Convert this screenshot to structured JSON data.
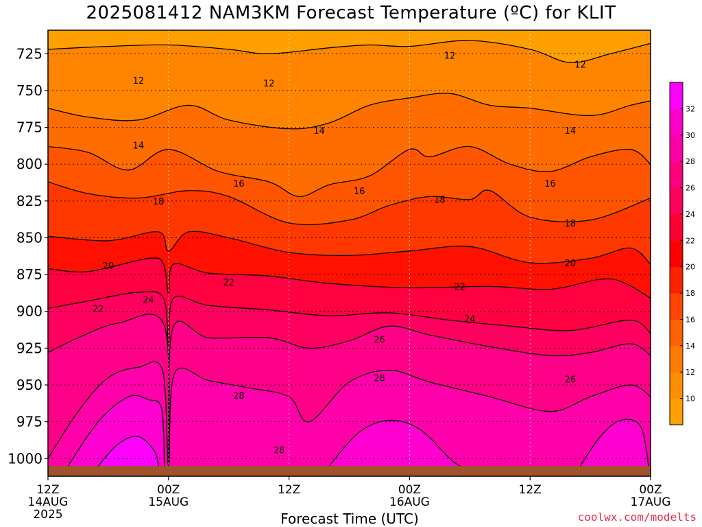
{
  "chart_data": {
    "type": "contour",
    "title": "2025081412 NAM3KM Forecast Temperature (ºC) for KLIT",
    "xlabel": "Forecast Time (UTC)",
    "ylabel": "",
    "x_hours_range": [
      0,
      60
    ],
    "x_ticks": [
      {
        "hour": 0,
        "label": "12Z",
        "sub": "14AUG",
        "sub2": "2025"
      },
      {
        "hour": 12,
        "label": "00Z",
        "sub": "15AUG",
        "sub2": ""
      },
      {
        "hour": 24,
        "label": "12Z",
        "sub": "",
        "sub2": ""
      },
      {
        "hour": 36,
        "label": "00Z",
        "sub": "16AUG",
        "sub2": ""
      },
      {
        "hour": 48,
        "label": "12Z",
        "sub": "",
        "sub2": ""
      },
      {
        "hour": 60,
        "label": "00Z",
        "sub": "17AUG",
        "sub2": ""
      }
    ],
    "y_pressure_range": [
      1012,
      709
    ],
    "y_ticks": [
      725,
      750,
      775,
      800,
      825,
      850,
      875,
      900,
      925,
      950,
      975,
      1000
    ],
    "grid": true,
    "colorbar": {
      "position": "right",
      "labels": [
        10,
        12,
        14,
        16,
        18,
        20,
        22,
        24,
        26,
        28,
        30,
        32
      ],
      "colors": [
        "#ffa000",
        "#ff8f00",
        "#ff7a00",
        "#ff6000",
        "#ff4500",
        "#ff2200",
        "#ff0000",
        "#ff0035",
        "#ff005a",
        "#ff0080",
        "#ff00a8",
        "#ff00cc",
        "#ff00ff"
      ]
    },
    "isotherms": [
      {
        "temp": 12,
        "points": [
          [
            0,
            722
          ],
          [
            6,
            720
          ],
          [
            12,
            719
          ],
          [
            18,
            722
          ],
          [
            22,
            725
          ],
          [
            28,
            721
          ],
          [
            32,
            719
          ],
          [
            36,
            720
          ],
          [
            42,
            716
          ],
          [
            48,
            722
          ],
          [
            52,
            731
          ],
          [
            56,
            725
          ],
          [
            60,
            718
          ]
        ],
        "labels": [
          {
            "hour": 9,
            "p": 743
          },
          {
            "hour": 22,
            "p": 745
          },
          {
            "hour": 40,
            "p": 726
          },
          {
            "hour": 53,
            "p": 732
          }
        ]
      },
      {
        "temp": 14,
        "points": [
          [
            0,
            762
          ],
          [
            4,
            768
          ],
          [
            9,
            770
          ],
          [
            14,
            760
          ],
          [
            18,
            770
          ],
          [
            24,
            776
          ],
          [
            28,
            772
          ],
          [
            32,
            760
          ],
          [
            36,
            755
          ],
          [
            40,
            752
          ],
          [
            44,
            760
          ],
          [
            48,
            762
          ],
          [
            54,
            767
          ],
          [
            58,
            760
          ],
          [
            60,
            757
          ]
        ],
        "labels": [
          {
            "hour": 9,
            "p": 787
          },
          {
            "hour": 27,
            "p": 777
          },
          {
            "hour": 52,
            "p": 777
          }
        ]
      },
      {
        "temp": 16,
        "points": [
          [
            0,
            788
          ],
          [
            4,
            792
          ],
          [
            8,
            804
          ],
          [
            12,
            790
          ],
          [
            17,
            805
          ],
          [
            22,
            812
          ],
          [
            25,
            822
          ],
          [
            28,
            814
          ],
          [
            32,
            808
          ],
          [
            36,
            790
          ],
          [
            38,
            795
          ],
          [
            42,
            788
          ],
          [
            46,
            800
          ],
          [
            50,
            805
          ],
          [
            54,
            795
          ],
          [
            58,
            790
          ],
          [
            60,
            800
          ]
        ],
        "labels": [
          {
            "hour": 19,
            "p": 813
          },
          {
            "hour": 31,
            "p": 818
          },
          {
            "hour": 50,
            "p": 813
          }
        ]
      },
      {
        "temp": 18,
        "points": [
          [
            0,
            812
          ],
          [
            4,
            820
          ],
          [
            9,
            823
          ],
          [
            14,
            818
          ],
          [
            18,
            822
          ],
          [
            24,
            840
          ],
          [
            30,
            838
          ],
          [
            34,
            828
          ],
          [
            38,
            822
          ],
          [
            42,
            824
          ],
          [
            44,
            818
          ],
          [
            48,
            836
          ],
          [
            54,
            838
          ],
          [
            60,
            823
          ]
        ],
        "labels": [
          {
            "hour": 11,
            "p": 825
          },
          {
            "hour": 39,
            "p": 824
          },
          {
            "hour": 52,
            "p": 840
          }
        ]
      },
      {
        "temp": 20,
        "points": [
          [
            0,
            849
          ],
          [
            6,
            852
          ],
          [
            11,
            846
          ],
          [
            12,
            859
          ],
          [
            14,
            846
          ],
          [
            18,
            850
          ],
          [
            24,
            860
          ],
          [
            30,
            862
          ],
          [
            36,
            859
          ],
          [
            42,
            856
          ],
          [
            48,
            867
          ],
          [
            54,
            864
          ],
          [
            58,
            857
          ],
          [
            60,
            868
          ]
        ],
        "labels": [
          {
            "hour": 6,
            "p": 869
          },
          {
            "hour": 52,
            "p": 867
          }
        ]
      },
      {
        "temp": 22,
        "points": [
          [
            0,
            871
          ],
          [
            4,
            873
          ],
          [
            10,
            864
          ],
          [
            11.5,
            868
          ],
          [
            12,
            888
          ],
          [
            12.5,
            868
          ],
          [
            16,
            874
          ],
          [
            22,
            876
          ],
          [
            28,
            881
          ],
          [
            36,
            884
          ],
          [
            44,
            883
          ],
          [
            50,
            885
          ],
          [
            56,
            878
          ],
          [
            60,
            891
          ]
        ],
        "labels": [
          {
            "hour": 5,
            "p": 898
          },
          {
            "hour": 18,
            "p": 880
          },
          {
            "hour": 41,
            "p": 883
          }
        ]
      },
      {
        "temp": 24,
        "points": [
          [
            0,
            898
          ],
          [
            4,
            893
          ],
          [
            9,
            887
          ],
          [
            11.5,
            891
          ],
          [
            12,
            923
          ],
          [
            12.5,
            891
          ],
          [
            16,
            896
          ],
          [
            22,
            899
          ],
          [
            28,
            903
          ],
          [
            34,
            901
          ],
          [
            40,
            906
          ],
          [
            46,
            910
          ],
          [
            52,
            913
          ],
          [
            58,
            906
          ],
          [
            60,
            915
          ]
        ],
        "labels": [
          {
            "hour": 10,
            "p": 892
          },
          {
            "hour": 42,
            "p": 905
          }
        ]
      },
      {
        "temp": 26,
        "points": [
          [
            0,
            928
          ],
          [
            3,
            918
          ],
          [
            7,
            908
          ],
          [
            11.6,
            910
          ],
          [
            12,
            1005
          ],
          [
            12.4,
            912
          ],
          [
            16,
            918
          ],
          [
            22,
            918
          ],
          [
            26,
            925
          ],
          [
            30,
            920
          ],
          [
            34,
            910
          ],
          [
            38,
            916
          ],
          [
            44,
            924
          ],
          [
            50,
            930
          ],
          [
            54,
            928
          ],
          [
            58,
            922
          ],
          [
            60,
            930
          ]
        ],
        "labels": [
          {
            "hour": 33,
            "p": 919
          },
          {
            "hour": 52,
            "p": 946
          }
        ]
      },
      {
        "temp": 28,
        "points": [
          [
            0,
            1000
          ],
          [
            3,
            968
          ],
          [
            6,
            945
          ],
          [
            9,
            938
          ],
          [
            11.4,
            940
          ],
          [
            12,
            1005
          ],
          [
            12.6,
            942
          ],
          [
            16,
            947
          ],
          [
            20,
            952
          ],
          [
            24,
            958
          ],
          [
            26,
            975
          ],
          [
            30,
            948
          ],
          [
            34,
            940
          ],
          [
            38,
            948
          ],
          [
            44,
            958
          ],
          [
            50,
            968
          ],
          [
            54,
            958
          ],
          [
            58,
            950
          ],
          [
            60,
            958
          ]
        ],
        "labels": [
          {
            "hour": 19,
            "p": 957
          },
          {
            "hour": 33,
            "p": 945
          },
          {
            "hour": 23,
            "p": 994
          }
        ]
      },
      {
        "temp": 30,
        "points": [
          [
            2,
            1005
          ],
          [
            5,
            975
          ],
          [
            8,
            958
          ],
          [
            10,
            960
          ],
          [
            11.3,
            966
          ],
          [
            11.6,
            1005
          ]
        ],
        "labels": []
      },
      {
        "temp": 30,
        "points": [
          [
            28,
            1005
          ],
          [
            31,
            982
          ],
          [
            34,
            974
          ],
          [
            37,
            980
          ],
          [
            40,
            1000
          ],
          [
            41,
            1005
          ]
        ],
        "labels": []
      },
      {
        "temp": 30,
        "points": [
          [
            53,
            1005
          ],
          [
            55,
            985
          ],
          [
            57,
            974
          ],
          [
            59,
            978
          ],
          [
            59.8,
            1005
          ]
        ],
        "labels": []
      },
      {
        "temp": 32,
        "points": [
          [
            5,
            1005
          ],
          [
            7,
            990
          ],
          [
            9,
            985
          ],
          [
            10.6,
            995
          ],
          [
            11,
            1005
          ]
        ],
        "labels": []
      }
    ],
    "fills": [
      {
        "level": 12,
        "color": "#ff8500"
      },
      {
        "level": 14,
        "color": "#ff6c00"
      },
      {
        "level": 16,
        "color": "#ff5500"
      },
      {
        "level": 18,
        "color": "#ff3800"
      },
      {
        "level": 20,
        "color": "#ff1000"
      },
      {
        "level": 22,
        "color": "#ff0040"
      },
      {
        "level": 24,
        "color": "#ff0060"
      },
      {
        "level": 26,
        "color": "#ff0088"
      },
      {
        "level": 28,
        "color": "#ff00aa"
      },
      {
        "level": 30,
        "color": "#ff00d0"
      },
      {
        "level": 32,
        "color": "#ff00ff"
      }
    ],
    "top_fill_color": "#ffa000",
    "ground_color": "#a0522d"
  },
  "credit": "coolwx.com/modelts"
}
